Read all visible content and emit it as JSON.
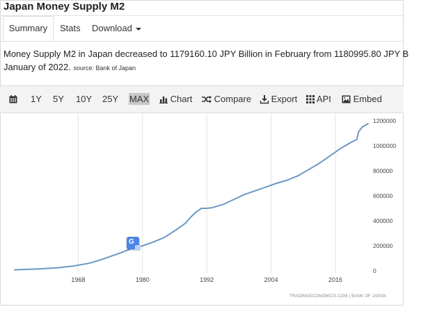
{
  "page": {
    "title": "Japan Money Supply M2"
  },
  "tabs": [
    {
      "label": "Summary"
    },
    {
      "label": "Stats"
    },
    {
      "label": "Download"
    }
  ],
  "description": {
    "line1": "Money Supply M2 in Japan decreased to 1179160.10 JPY Billion in February from 1180995.80 JPY B",
    "line2": "January of 2022.",
    "source": "source: Bank of Japan"
  },
  "toolbar": {
    "ranges": [
      "1Y",
      "5Y",
      "10Y",
      "25Y",
      "MAX"
    ],
    "active_range": "MAX",
    "chart": "Chart",
    "compare": "Compare",
    "export": "Export",
    "api": "API",
    "embed": "Embed"
  },
  "chart_credit": "TRADINGECONOMICS.COM  |  BANK OF JAPAN",
  "chart_data": {
    "type": "line",
    "title": "",
    "xlabel": "",
    "ylabel": "",
    "xlim": [
      1956,
      2022.5
    ],
    "ylim": [
      0,
      1200000
    ],
    "x_ticks": [
      1968,
      1980,
      1992,
      2004,
      2016
    ],
    "y_ticks": [
      0,
      200000,
      400000,
      600000,
      800000,
      1000000,
      1200000
    ],
    "y_tick_labels": [
      "0",
      "200000",
      "400000",
      "600000",
      "800000",
      "1000000",
      "1200000"
    ],
    "grid": "vertical",
    "axis_side": "right",
    "line_color": "#6a98c4",
    "series": [
      {
        "x": [
          1956,
          1960,
          1964,
          1967,
          1970,
          1972,
          1974,
          1976,
          1978,
          1980,
          1982,
          1984,
          1986,
          1988,
          1989,
          1990,
          1991,
          1992,
          1993,
          1995,
          1997,
          1999,
          2001,
          2003,
          2005,
          2007,
          2009,
          2011,
          2013,
          2015,
          2017,
          2019,
          2020,
          2020.3,
          2021,
          2022.2
        ],
        "y": [
          8000,
          14000,
          24000,
          38000,
          60000,
          85000,
          115000,
          145000,
          180000,
          200000,
          230000,
          265000,
          320000,
          380000,
          430000,
          470000,
          500000,
          500000,
          505000,
          530000,
          570000,
          610000,
          640000,
          670000,
          700000,
          725000,
          760000,
          810000,
          860000,
          920000,
          980000,
          1030000,
          1050000,
          1110000,
          1150000,
          1180000
        ]
      }
    ]
  },
  "translate_widget": {
    "icon": "google-translate-icon",
    "glyph": "G"
  }
}
